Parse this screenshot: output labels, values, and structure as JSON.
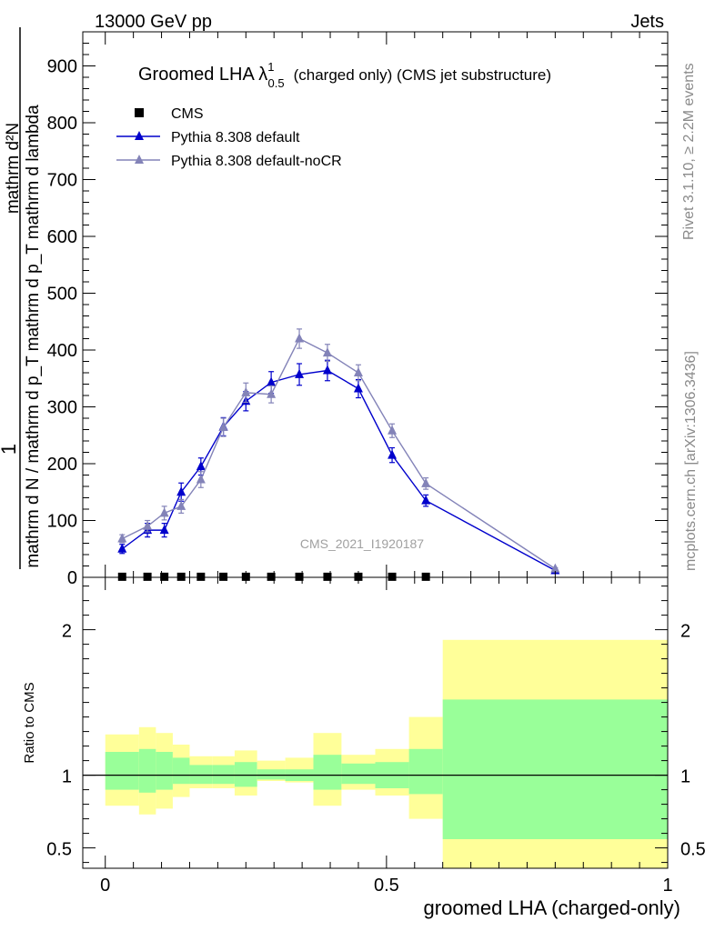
{
  "header": {
    "left": "13000 GeV pp",
    "right": "Jets"
  },
  "side_labels": {
    "rivet": "Rivet 3.1.10, ≥ 2.2M events",
    "mcplots": "mcplots.cern.ch [arXiv:1306.3436]"
  },
  "watermark": "CMS_2021_I1920187",
  "chart_data": [
    {
      "type": "line",
      "panel": "main",
      "title": "Groomed LHA λ",
      "title_sup": "1",
      "title_sub": "0.5",
      "title_suffix": "(charged only) (CMS jet substructure)",
      "ylabel_numerator": "mathrm d²N",
      "ylabel_denominator": "mathrm d N / mathrm d p_T mathrm d p_T mathrm d lambda",
      "ylabel_prefix": "1",
      "xlim": [
        -0.04,
        1.0
      ],
      "ylim": [
        0,
        960
      ],
      "yticks": [
        0,
        100,
        200,
        300,
        400,
        500,
        600,
        700,
        800,
        900
      ],
      "grid": false,
      "legend_placement": "top-left",
      "series": [
        {
          "name": "CMS",
          "color": "#000000",
          "marker": "square",
          "x": [
            0.03,
            0.075,
            0.105,
            0.135,
            0.17,
            0.21,
            0.25,
            0.295,
            0.345,
            0.395,
            0.45,
            0.51,
            0.57
          ],
          "y": [
            1,
            1,
            1,
            1,
            1,
            1,
            1,
            1,
            1,
            1,
            1,
            1,
            1
          ]
        },
        {
          "name": "Pythia 8.308 default",
          "color": "#0000cc",
          "marker": "triangle",
          "x": [
            0.03,
            0.075,
            0.105,
            0.135,
            0.17,
            0.21,
            0.25,
            0.295,
            0.345,
            0.395,
            0.45,
            0.51,
            0.57,
            0.8
          ],
          "y": [
            50,
            83,
            83,
            150,
            195,
            265,
            310,
            343,
            357,
            364,
            332,
            215,
            135,
            12
          ],
          "err": [
            8,
            12,
            12,
            16,
            15,
            16,
            17,
            19,
            19,
            18,
            16,
            13,
            10,
            2
          ]
        },
        {
          "name": "Pythia 8.308 default-noCR",
          "color": "#8383b8",
          "marker": "triangle",
          "x": [
            0.03,
            0.075,
            0.105,
            0.135,
            0.17,
            0.21,
            0.25,
            0.295,
            0.345,
            0.395,
            0.45,
            0.51,
            0.57,
            0.8
          ],
          "y": [
            68,
            90,
            113,
            125,
            172,
            264,
            325,
            322,
            420,
            395,
            360,
            258,
            165,
            15
          ],
          "err": [
            7,
            10,
            12,
            12,
            14,
            16,
            17,
            15,
            17,
            15,
            14,
            12,
            10,
            2
          ]
        }
      ]
    },
    {
      "type": "area",
      "panel": "ratio",
      "ylabel": "Ratio to CMS",
      "xlabel": "groomed LHA (charged-only)",
      "xlim": [
        -0.04,
        1.0
      ],
      "ylim": [
        0.36,
        2.36
      ],
      "yticks_labeled": [
        0.5,
        1,
        2
      ],
      "xticks_labeled": [
        "0",
        "0.5",
        "1"
      ],
      "reference_line": 1.0,
      "bins": [
        {
          "x": [
            0.0,
            0.06
          ],
          "stat": [
            0.9,
            1.16
          ],
          "total": [
            0.79,
            1.28
          ]
        },
        {
          "x": [
            0.06,
            0.09
          ],
          "stat": [
            0.88,
            1.18
          ],
          "total": [
            0.73,
            1.33
          ]
        },
        {
          "x": [
            0.09,
            0.12
          ],
          "stat": [
            0.9,
            1.16
          ],
          "total": [
            0.77,
            1.29
          ]
        },
        {
          "x": [
            0.12,
            0.15
          ],
          "stat": [
            0.94,
            1.12
          ],
          "total": [
            0.85,
            1.21
          ]
        },
        {
          "x": [
            0.15,
            0.19
          ],
          "stat": [
            0.94,
            1.07
          ],
          "total": [
            0.91,
            1.13
          ]
        },
        {
          "x": [
            0.19,
            0.23
          ],
          "stat": [
            0.94,
            1.07
          ],
          "total": [
            0.91,
            1.13
          ]
        },
        {
          "x": [
            0.23,
            0.27
          ],
          "stat": [
            0.92,
            1.09
          ],
          "total": [
            0.86,
            1.17
          ]
        },
        {
          "x": [
            0.27,
            0.32
          ],
          "stat": [
            0.97,
            1.04
          ],
          "total": [
            0.96,
            1.1
          ]
        },
        {
          "x": [
            0.32,
            0.37
          ],
          "stat": [
            0.96,
            1.04
          ],
          "total": [
            0.95,
            1.12
          ]
        },
        {
          "x": [
            0.37,
            0.42
          ],
          "stat": [
            0.9,
            1.14
          ],
          "total": [
            0.79,
            1.29
          ]
        },
        {
          "x": [
            0.42,
            0.48
          ],
          "stat": [
            0.94,
            1.08
          ],
          "total": [
            0.9,
            1.14
          ]
        },
        {
          "x": [
            0.48,
            0.54
          ],
          "stat": [
            0.91,
            1.09
          ],
          "total": [
            0.86,
            1.18
          ]
        },
        {
          "x": [
            0.54,
            0.6
          ],
          "stat": [
            0.87,
            1.18
          ],
          "total": [
            0.7,
            1.4
          ]
        },
        {
          "x": [
            0.6,
            1.0
          ],
          "stat": [
            0.56,
            1.52
          ],
          "total": [
            0.36,
            1.93
          ]
        }
      ],
      "colors": {
        "stat": "#99ff99",
        "total": "#ffff99"
      }
    }
  ]
}
